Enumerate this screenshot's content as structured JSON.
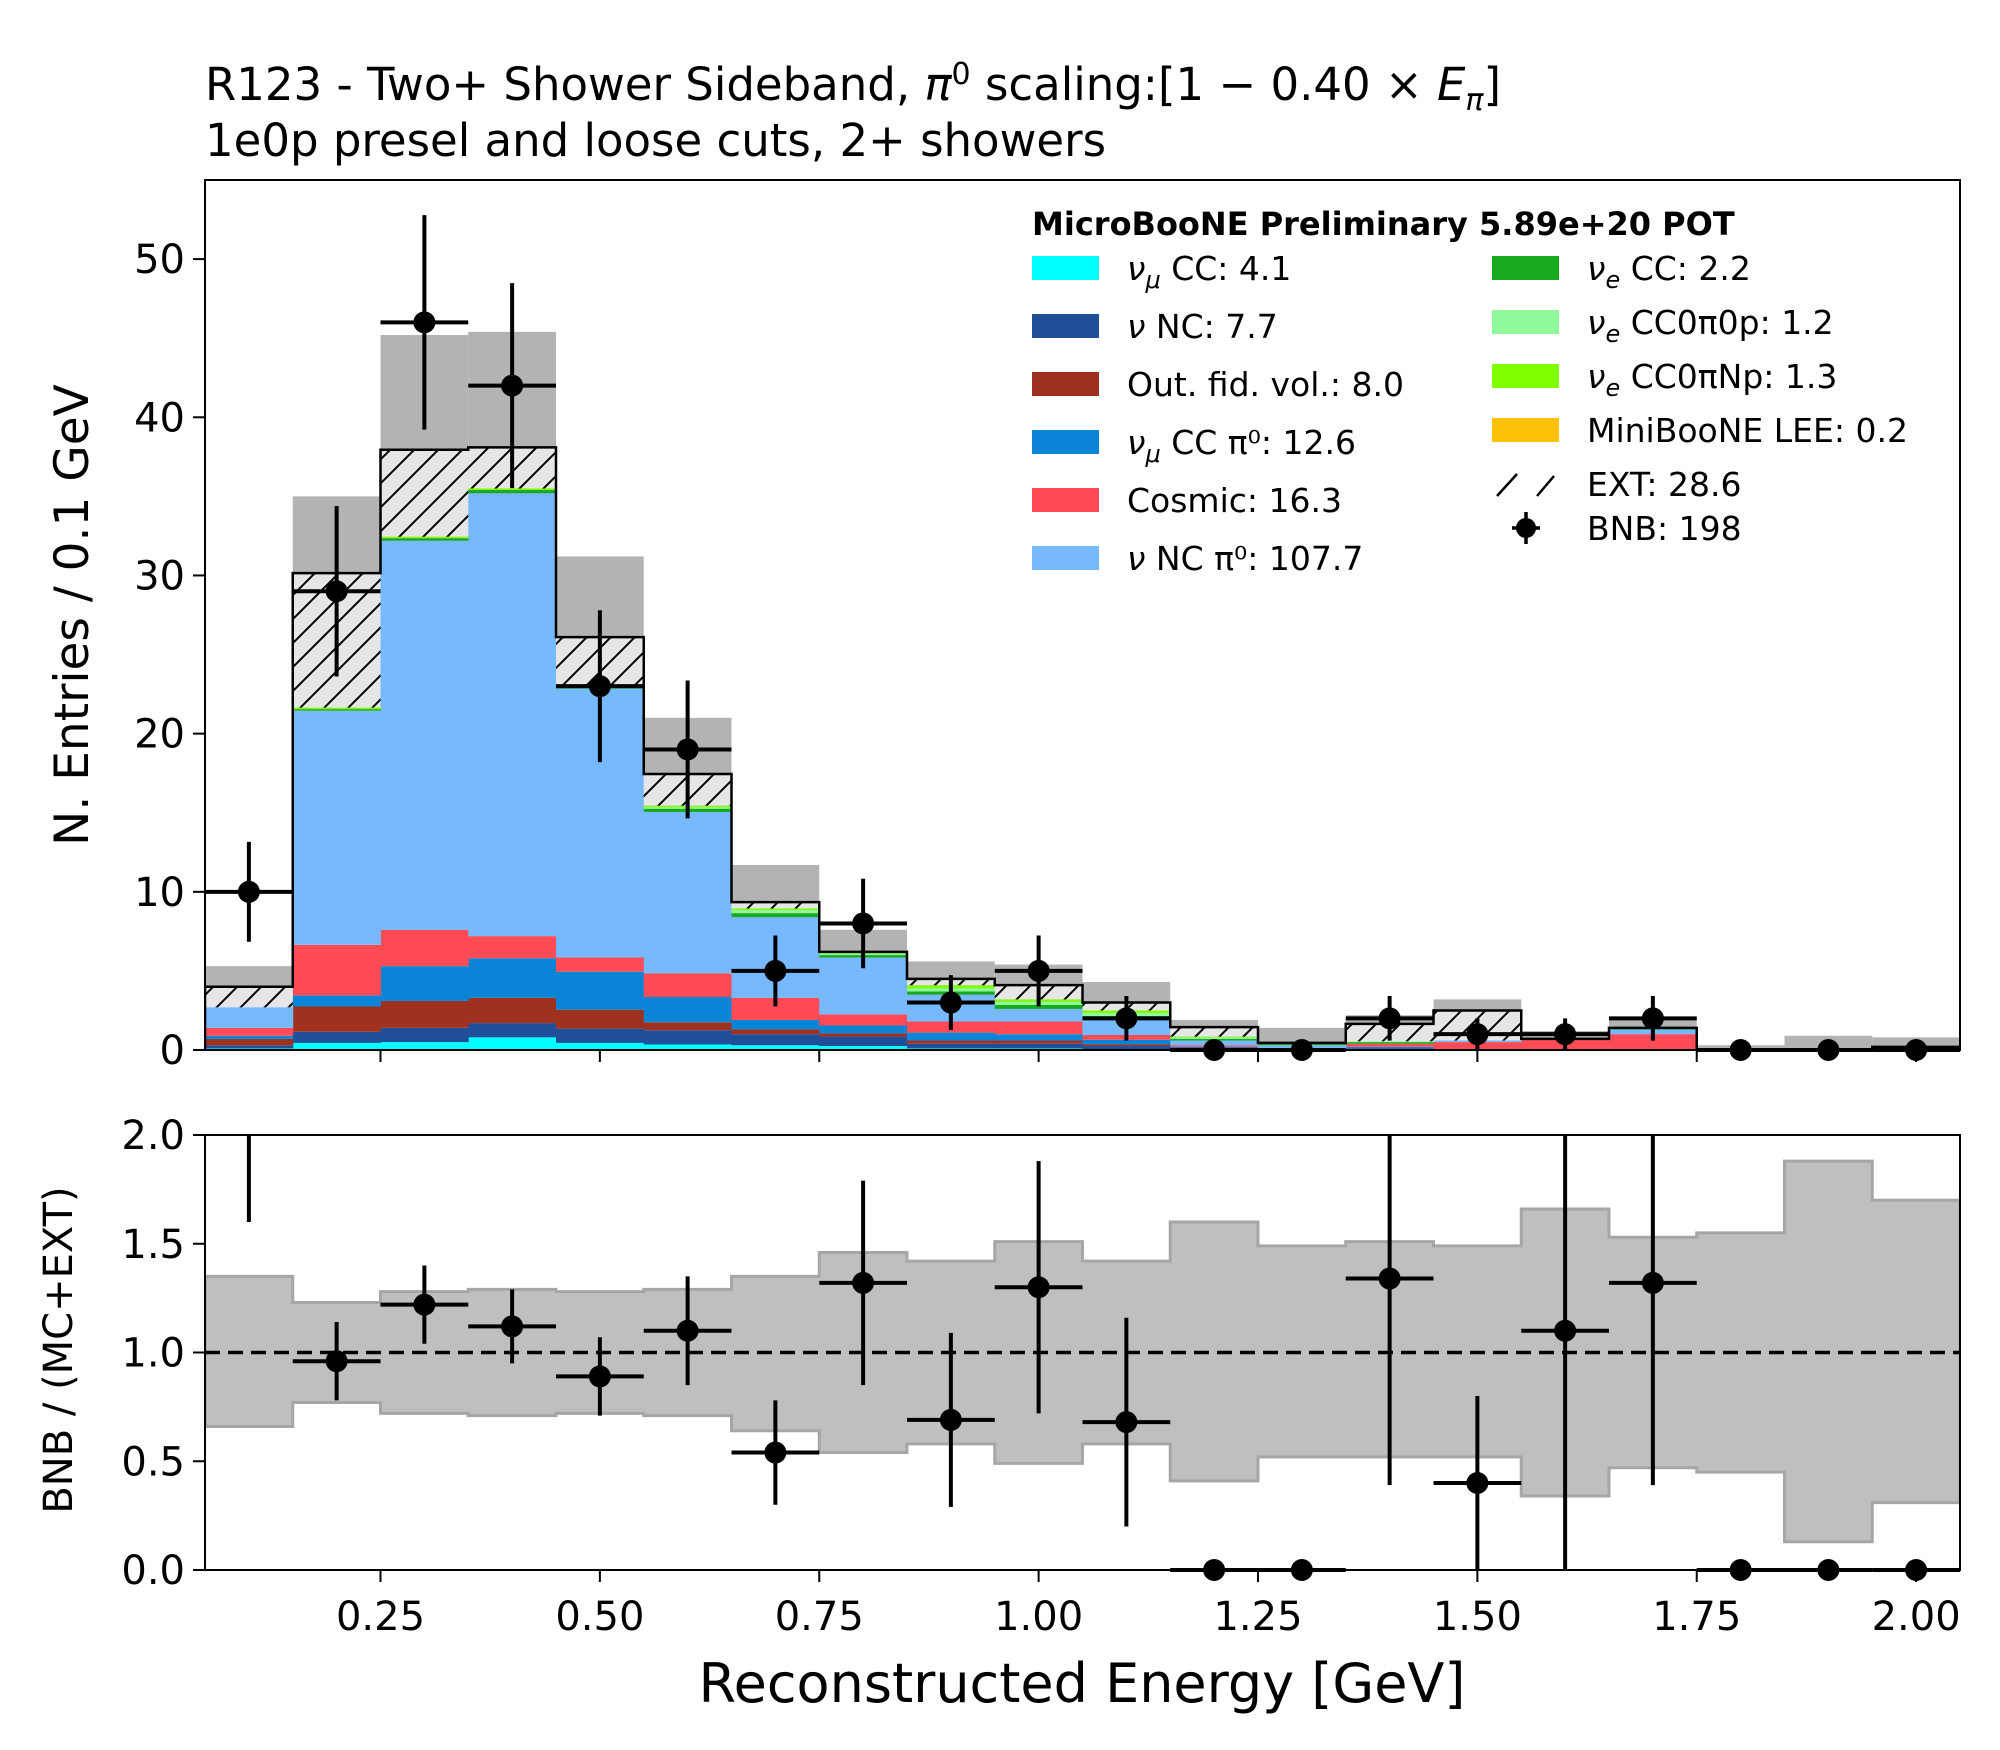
{
  "chart_data": [
    {
      "type": "bar",
      "stacked": true,
      "title": "R123 - Two+ Shower Sideband, π⁰ scaling:[1 − 0.40 × E_π]",
      "title_line1": "R123 - Two+ Shower Sideband, ",
      "title_pi": "π",
      "title_pi_sup": "0",
      "title_scaling": " scaling:[1 − 0.40 × ",
      "title_E": "E",
      "title_E_sub": "π",
      "title_close": "]",
      "subtitle": "1e0p presel and loose cuts, 2+ showers",
      "xlabel": "Reconstructed Energy [GeV]",
      "ylabel": "N. Entries / 0.1 GeV",
      "xlim": [
        0.05,
        2.05
      ],
      "ylim": [
        0,
        55
      ],
      "bin_edges": [
        0.05,
        0.15,
        0.25,
        0.35,
        0.45,
        0.55,
        0.65,
        0.75,
        0.85,
        0.95,
        1.05,
        1.15,
        1.25,
        1.35,
        1.45,
        1.55,
        1.65,
        1.75,
        1.85,
        1.95,
        2.05
      ],
      "x_centers": [
        0.1,
        0.2,
        0.3,
        0.4,
        0.5,
        0.6,
        0.7,
        0.8,
        0.9,
        1.0,
        1.1,
        1.2,
        1.3,
        1.4,
        1.5,
        1.6,
        1.7,
        1.8,
        1.9,
        2.0
      ],
      "yticks": [
        0,
        10,
        20,
        30,
        40,
        50
      ],
      "annotation": "MicroBooNE Preliminary 5.89e+20 POT",
      "series": [
        {
          "key": "numu_cc",
          "tex": "ν",
          "sub": "μ",
          "rest": " CC: 4.1",
          "color": "#00ffff",
          "values": [
            0.1,
            0.45,
            0.5,
            0.8,
            0.45,
            0.35,
            0.3,
            0.25,
            0.1,
            0.1,
            0.05,
            0,
            0,
            0,
            0,
            0,
            0,
            0,
            0,
            0
          ]
        },
        {
          "key": "nu_nc",
          "tex": "ν",
          "sub": "",
          "rest": " NC: 7.7",
          "color": "#1f4e9a",
          "values": [
            0.2,
            0.7,
            0.9,
            0.9,
            0.9,
            0.9,
            0.7,
            0.6,
            0.3,
            0.3,
            0.2,
            0.1,
            0,
            0.1,
            0,
            0,
            0,
            0,
            0,
            0.2
          ]
        },
        {
          "key": "out_fid",
          "tex": "",
          "sub": "",
          "rest": "Out. fid. vol.: 8.0",
          "color": "#a0311e",
          "values": [
            0.4,
            1.6,
            1.7,
            1.6,
            1.2,
            0.5,
            0.3,
            0.2,
            0.2,
            0.2,
            0.1,
            0,
            0,
            0,
            0,
            0,
            0,
            0,
            0,
            0
          ]
        },
        {
          "key": "numu_cc_pi0",
          "tex": "ν",
          "sub": "μ",
          "rest": " CC π⁰: 12.6",
          "color": "#0a84d6",
          "values": [
            0.2,
            0.7,
            2.2,
            2.5,
            2.4,
            1.6,
            0.6,
            0.5,
            0.5,
            0.4,
            0.3,
            0.1,
            0.1,
            0.1,
            0,
            0,
            0,
            0,
            0,
            0
          ]
        },
        {
          "key": "cosmic",
          "tex": "",
          "sub": "",
          "rest": "Cosmic: 16.3",
          "color": "#ff4b55",
          "values": [
            0.5,
            3.2,
            2.3,
            1.4,
            0.9,
            1.5,
            1.4,
            0.7,
            0.7,
            0.8,
            0.3,
            0.1,
            0,
            0.2,
            0.5,
            0.7,
            1.0,
            0,
            0,
            0
          ]
        },
        {
          "key": "nu_nc_pi0",
          "tex": "ν",
          "sub": "",
          "rest": " NC π⁰: 107.7",
          "color": "#76b9ff",
          "values": [
            1.3,
            14.8,
            24.6,
            28.0,
            17.0,
            10.2,
            5.1,
            3.6,
            1.7,
            0.8,
            1.0,
            0.3,
            0.2,
            0,
            0.1,
            0,
            0.3,
            0,
            0,
            0
          ]
        },
        {
          "key": "nue_cc",
          "tex": "ν",
          "sub": "e",
          "rest": " CC: 2.2",
          "color": "#19a91f",
          "values": [
            0,
            0.1,
            0.15,
            0.2,
            0.15,
            0.2,
            0.25,
            0.15,
            0.2,
            0.25,
            0.2,
            0.1,
            0.1,
            0.1,
            0,
            0,
            0.1,
            0,
            0,
            0
          ]
        },
        {
          "key": "nue_cc0pi0p",
          "tex": "ν",
          "sub": "e",
          "rest": " CC0π0p: 1.2",
          "color": "#8ffa9a",
          "values": [
            0,
            0,
            0,
            0,
            0,
            0.1,
            0.2,
            0.1,
            0.2,
            0.2,
            0.2,
            0.1,
            0.05,
            0.05,
            0,
            0,
            0,
            0,
            0,
            0
          ]
        },
        {
          "key": "nue_cc0piNp",
          "tex": "ν",
          "sub": "e",
          "rest": " CC0πNp: 1.3",
          "color": "#80ff00",
          "values": [
            0,
            0.1,
            0.1,
            0.1,
            0.1,
            0.1,
            0.1,
            0.1,
            0.2,
            0.15,
            0.15,
            0.05,
            0,
            0,
            0,
            0,
            0,
            0,
            0,
            0
          ]
        },
        {
          "key": "miniboone_lee",
          "tex": "",
          "sub": "",
          "rest": "MiniBooNE LEE: 0.2",
          "color": "#ffc107",
          "values": [
            0,
            0,
            0,
            0,
            0,
            0,
            0,
            0,
            0,
            0,
            0,
            0,
            0,
            0,
            0,
            0,
            0,
            0,
            0,
            0
          ]
        }
      ],
      "ext": {
        "label": "EXT: 28.6",
        "values": [
          1.3,
          8.5,
          5.5,
          2.6,
          3.0,
          2.0,
          0.4,
          0,
          0.4,
          0.9,
          0.5,
          0.6,
          0,
          1.1,
          1.9,
          0,
          0,
          0,
          0,
          0
        ]
      },
      "err_band_upper": [
        5.3,
        35.0,
        45.2,
        45.4,
        31.2,
        21.0,
        11.7,
        7.6,
        5.6,
        5.4,
        4.3,
        1.9,
        1.4,
        2.2,
        3.2,
        1.2,
        2.1,
        0.3,
        0.9,
        0.8
      ],
      "err_band_lower": [
        2.7,
        25.2,
        30.4,
        30.1,
        21.0,
        13.7,
        6.8,
        4.8,
        3.2,
        2.5,
        2.2,
        0.6,
        0.5,
        0.7,
        0.6,
        0.6,
        0.8,
        0.1,
        0.1,
        0.1
      ],
      "data": {
        "label": "BNB: 198",
        "y": [
          10,
          29,
          46,
          42,
          23,
          19,
          5,
          8,
          3,
          5,
          2,
          0,
          0,
          2,
          1,
          1,
          2,
          0,
          0,
          0
        ],
        "yerr": [
          3.16,
          5.39,
          6.78,
          6.48,
          4.8,
          4.36,
          2.24,
          2.83,
          1.73,
          2.24,
          1.41,
          0,
          0,
          1.41,
          1.0,
          1.0,
          1.41,
          0,
          0,
          0
        ]
      }
    },
    {
      "type": "scatter",
      "ylabel": "BNB / (MC+EXT)",
      "xlim": [
        0.05,
        2.05
      ],
      "ylim": [
        0,
        2.0
      ],
      "yticks": [
        0.0,
        0.5,
        1.0,
        1.5,
        2.0
      ],
      "xticks": [
        0.25,
        0.5,
        0.75,
        1.0,
        1.25,
        1.5,
        1.75,
        2.0
      ],
      "xtick_labels": [
        "0.25",
        "0.50",
        "0.75",
        "1.00",
        "1.25",
        "1.50",
        "1.75",
        "2.00"
      ],
      "ytick_labels": [
        "0.0",
        "0.5",
        "1.0",
        "1.5",
        "2.0"
      ],
      "reference_line": 1.0,
      "ratio": [
        2.4,
        0.96,
        1.22,
        1.12,
        0.89,
        1.1,
        0.54,
        1.32,
        0.69,
        1.3,
        0.68,
        0,
        0,
        1.34,
        0.4,
        1.1,
        1.32,
        0,
        0,
        0
      ],
      "ratio_err": [
        0.8,
        0.18,
        0.18,
        0.17,
        0.18,
        0.25,
        0.24,
        0.47,
        0.4,
        0.58,
        0.48,
        0,
        0,
        0.95,
        0.4,
        1.3,
        0.93,
        0,
        0,
        0
      ],
      "band_upper": [
        1.35,
        1.23,
        1.28,
        1.29,
        1.28,
        1.29,
        1.35,
        1.46,
        1.42,
        1.51,
        1.42,
        1.6,
        1.49,
        1.51,
        1.49,
        1.66,
        1.53,
        1.55,
        1.88,
        1.7
      ],
      "band_lower": [
        0.66,
        0.77,
        0.72,
        0.71,
        0.72,
        0.71,
        0.64,
        0.54,
        0.58,
        0.49,
        0.58,
        0.41,
        0.52,
        0.52,
        0.52,
        0.34,
        0.47,
        0.45,
        0.13,
        0.31
      ]
    }
  ]
}
